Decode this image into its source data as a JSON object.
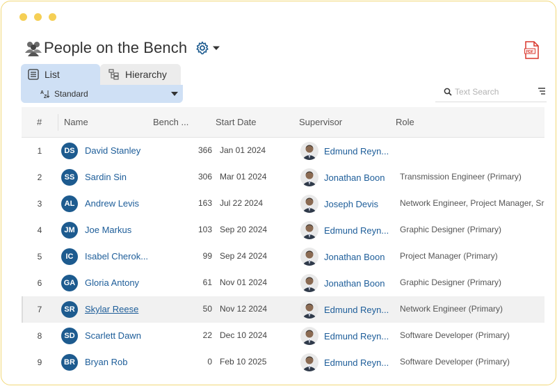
{
  "window": {
    "dots": [
      "dot-1",
      "dot-2",
      "dot-3"
    ]
  },
  "page": {
    "title": "People on the Bench"
  },
  "tabs": [
    {
      "label": "List",
      "icon": "list-icon",
      "active": true
    },
    {
      "label": "Hierarchy",
      "icon": "hierarchy-icon",
      "active": false
    }
  ],
  "view": {
    "selected": "Standard"
  },
  "search": {
    "placeholder": "Text Search",
    "value": ""
  },
  "columns": {
    "num": "#",
    "name": "Name",
    "bench": "Bench ...",
    "start": "Start Date",
    "supervisor": "Supervisor",
    "role": "Role"
  },
  "rows": [
    {
      "num": "1",
      "initials": "DS",
      "name": "David Stanley",
      "bench": "366",
      "date": "Jan 01 2024",
      "supervisor": "Edmund Reyn...",
      "role": ""
    },
    {
      "num": "2",
      "initials": "SS",
      "name": "Sardin Sin",
      "bench": "306",
      "date": "Mar 01 2024",
      "supervisor": "Jonathan Boon",
      "role": "Transmission Engineer (Primary)"
    },
    {
      "num": "3",
      "initials": "AL",
      "name": "Andrew Levis",
      "bench": "163",
      "date": "Jul 22 2024",
      "supervisor": "Joseph Devis",
      "role": "Network Engineer, Project Manager, Sr ..."
    },
    {
      "num": "4",
      "initials": "JM",
      "name": "Joe Markus",
      "bench": "103",
      "date": "Sep 20 2024",
      "supervisor": "Edmund Reyn...",
      "role": "Graphic Designer (Primary)"
    },
    {
      "num": "5",
      "initials": "IC",
      "name": "Isabel Cherok...",
      "bench": "99",
      "date": "Sep 24 2024",
      "supervisor": "Jonathan Boon",
      "role": "Project Manager (Primary)"
    },
    {
      "num": "6",
      "initials": "GA",
      "name": "Gloria Antony",
      "bench": "61",
      "date": "Nov 01 2024",
      "supervisor": "Jonathan Boon",
      "role": "Graphic Designer (Primary)"
    },
    {
      "num": "7",
      "initials": "SR",
      "name": "Skylar Reese",
      "bench": "50",
      "date": "Nov 12 2024",
      "supervisor": "Edmund Reyn...",
      "role": "Network Engineer (Primary)"
    },
    {
      "num": "8",
      "initials": "SD",
      "name": "Scarlett Dawn",
      "bench": "22",
      "date": "Dec 10 2024",
      "supervisor": "Edmund Reyn...",
      "role": "Software Developer (Primary)"
    },
    {
      "num": "9",
      "initials": "BR",
      "name": "Bryan Rob",
      "bench": "0",
      "date": "Feb 10 2025",
      "supervisor": "Edmund Reyn...",
      "role": "Software Developer (Primary)"
    }
  ],
  "colors": {
    "accent": "#1d5b8f",
    "link": "#1d5d99",
    "tab_active": "#cfe0f5",
    "window_dots": "#f5cf55",
    "pdf_red": "#d9362b"
  }
}
